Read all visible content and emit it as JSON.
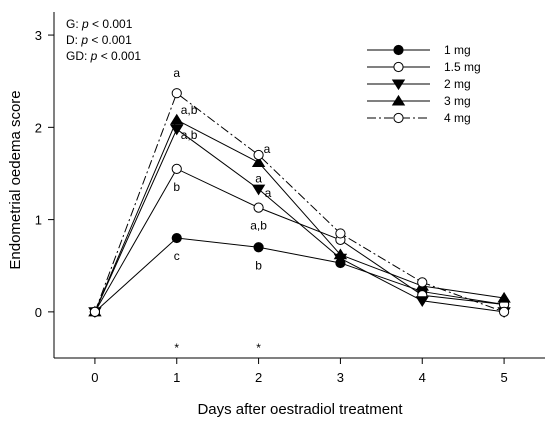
{
  "chart_data": {
    "type": "line",
    "xlabel": "Days after oestradiol treatment",
    "ylabel": "Endometrial oedema score",
    "xlim": [
      -0.5,
      5.5
    ],
    "ylim": [
      -0.5,
      3.25
    ],
    "x_ticks": [
      0,
      1,
      2,
      3,
      4,
      5
    ],
    "y_ticks": [
      0,
      1,
      2,
      3
    ],
    "grid": false,
    "legend_position": "top-right",
    "series": [
      {
        "name": "1 mg",
        "marker": "filled-circle",
        "dash": "solid",
        "x": [
          0,
          1,
          2,
          3,
          4,
          5
        ],
        "y": [
          0,
          0.8,
          0.7,
          0.53,
          0.22,
          0.08
        ]
      },
      {
        "name": "1.5 mg",
        "marker": "open-circle",
        "dash": "solid",
        "x": [
          0,
          1,
          2,
          3,
          4,
          5
        ],
        "y": [
          0,
          1.55,
          1.13,
          0.78,
          0.18,
          0.08
        ]
      },
      {
        "name": "2 mg",
        "marker": "filled-triangle-down",
        "dash": "solid",
        "x": [
          0,
          1,
          2,
          3,
          4,
          5
        ],
        "y": [
          0,
          1.98,
          1.33,
          0.58,
          0.12,
          0.0
        ]
      },
      {
        "name": "3 mg",
        "marker": "filled-triangle-up",
        "dash": "solid",
        "x": [
          0,
          1,
          2,
          3,
          4,
          5
        ],
        "y": [
          0,
          2.08,
          1.62,
          0.62,
          0.28,
          0.15
        ]
      },
      {
        "name": "4 mg",
        "marker": "open-circle",
        "dash": "dash-dot",
        "x": [
          0,
          1,
          2,
          3,
          4,
          5
        ],
        "y": [
          0,
          2.37,
          1.7,
          0.85,
          0.32,
          0.0
        ]
      }
    ],
    "annotations": [
      {
        "text": "a",
        "x": 1,
        "y": 2.37,
        "dx": 0,
        "dy": -16,
        "anchor": "middle"
      },
      {
        "text": "a,b",
        "x": 1,
        "y": 2.08,
        "dx": 4,
        "dy": -6,
        "anchor": "start"
      },
      {
        "text": "a,b",
        "x": 1,
        "y": 1.98,
        "dx": 4,
        "dy": 10,
        "anchor": "start"
      },
      {
        "text": "b",
        "x": 1,
        "y": 1.55,
        "dx": 0,
        "dy": 22,
        "anchor": "middle"
      },
      {
        "text": "c",
        "x": 1,
        "y": 0.8,
        "dx": 0,
        "dy": 22,
        "anchor": "middle"
      },
      {
        "text": "a",
        "x": 2,
        "y": 1.7,
        "dx": 5,
        "dy": -2,
        "anchor": "start"
      },
      {
        "text": "a",
        "x": 2,
        "y": 1.62,
        "dx": 0,
        "dy": 20,
        "anchor": "middle"
      },
      {
        "text": "a",
        "x": 2,
        "y": 1.33,
        "dx": 6,
        "dy": 8,
        "anchor": "start"
      },
      {
        "text": "a,b",
        "x": 2,
        "y": 1.13,
        "dx": 0,
        "dy": 22,
        "anchor": "middle"
      },
      {
        "text": "b",
        "x": 2,
        "y": 0.7,
        "dx": 0,
        "dy": 22,
        "anchor": "middle"
      }
    ],
    "asterisks": [
      {
        "text": "*",
        "x": 1
      },
      {
        "text": "*",
        "x": 2
      }
    ],
    "stats": [
      {
        "label": "G: ",
        "p": "p",
        "rest": " < 0.001"
      },
      {
        "label": "D: ",
        "p": "p",
        "rest": " < 0.001"
      },
      {
        "label": "GD: ",
        "p": "p",
        "rest": " < 0.001"
      }
    ]
  }
}
